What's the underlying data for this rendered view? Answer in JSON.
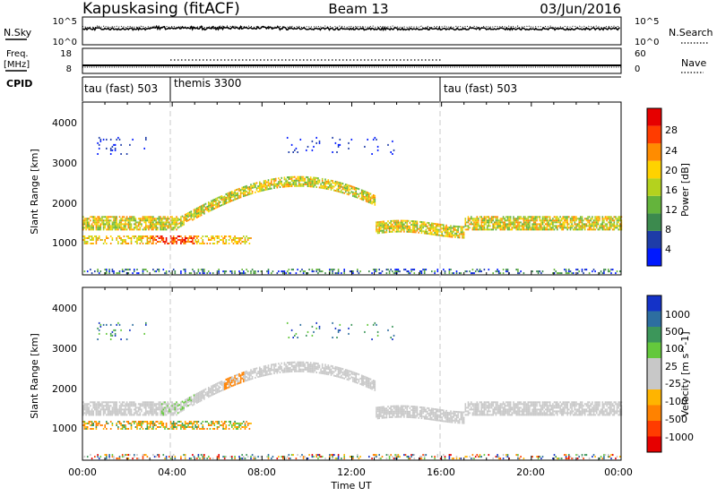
{
  "header": {
    "station": "Kapuskasing (fitACF)",
    "beam": "Beam 13",
    "date": "03/Jun/2016"
  },
  "panels": {
    "nsky": {
      "left_label": "N.Sky",
      "left_ticks": [
        "10^5",
        "10^0"
      ],
      "right_ticks": [
        "10^5",
        "10^0"
      ],
      "right_label": "N.Search"
    },
    "freq": {
      "left_label_1": "Freq.",
      "left_label_2": "[MHz]",
      "left_ticks": [
        "18",
        "8"
      ],
      "right_ticks": [
        "60",
        "0"
      ],
      "right_label": "Nave"
    },
    "cpid": {
      "label": "CPID",
      "segments": [
        "tau (fast) 503",
        "themis 3300",
        "tau (fast) 503"
      ]
    }
  },
  "time_axis": {
    "label": "Time UT",
    "ticks": [
      "00:00",
      "04:00",
      "08:00",
      "12:00",
      "16:00",
      "20:00",
      "00:00"
    ]
  },
  "power_panel": {
    "ylabel": "Slant Range [km]",
    "yticks": [
      "4000",
      "3000",
      "2000",
      "1000"
    ],
    "colorbar_label": "Power [dB]",
    "colorbar_ticks": [
      "28",
      "24",
      "20",
      "16",
      "12",
      "8",
      "4"
    ],
    "colors": [
      "#0019ff",
      "#1e3ca8",
      "#3c8a4e",
      "#64b43c",
      "#b4d21e",
      "#ffd200",
      "#ff8c00",
      "#ff3c00",
      "#e60000"
    ]
  },
  "velocity_panel": {
    "ylabel": "Slant Range [km]",
    "yticks": [
      "4000",
      "3000",
      "2000",
      "1000"
    ],
    "colorbar_label": "Velocity [m s^-1]",
    "colorbar_ticks": [
      "1000",
      "500",
      "100",
      "25",
      "-25",
      "-100",
      "-500",
      "-1000"
    ],
    "colors": [
      "#1432c8",
      "#2d6ea0",
      "#3c965a",
      "#64c83c",
      "#c8c8c8",
      "#c8c8c8",
      "#ffb400",
      "#ff8200",
      "#ff3c00",
      "#e60000"
    ]
  },
  "chart_data": {
    "type": "heatmap",
    "title": "Kapuskasing (fitACF)",
    "xlabel": "Time UT",
    "xlim": [
      "00:00",
      "24:00"
    ],
    "ylabel": "Slant Range [km]",
    "ylim": [
      180,
      4500
    ],
    "panels": [
      "Power [dB]",
      "Velocity [m s^-1]"
    ],
    "power_range_db": [
      0,
      30
    ],
    "velocity_range_ms": [
      -1000,
      1000
    ],
    "cpid_segments": [
      {
        "name": "tau (fast) 503",
        "start": "00:00",
        "end": "04:00"
      },
      {
        "name": "themis 3300",
        "start": "04:00",
        "end": "16:00"
      },
      {
        "name": "tau (fast) 503",
        "start": "16:00",
        "end": "24:00"
      }
    ],
    "frequency_mhz": 10
  }
}
